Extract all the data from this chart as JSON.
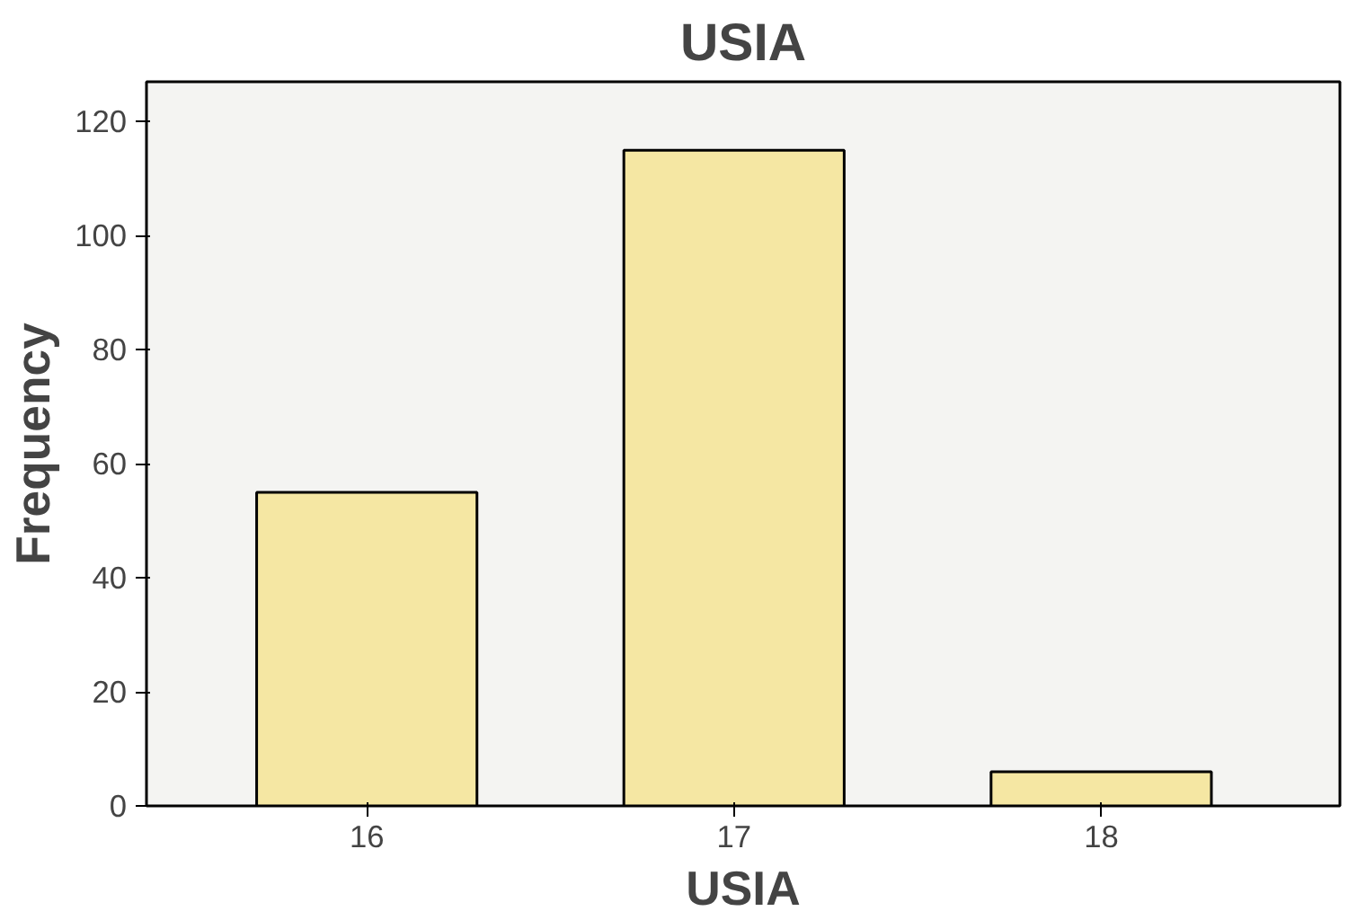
{
  "chart_data": {
    "type": "bar",
    "title": "USIA",
    "xlabel": "USIA",
    "ylabel": "Frequency",
    "categories": [
      "16",
      "17",
      "18"
    ],
    "values": [
      55,
      115,
      6
    ],
    "color": "#f5e7a3",
    "ylim": [
      0,
      127
    ],
    "yticks": [
      0,
      20,
      40,
      60,
      80,
      100,
      120
    ],
    "grid": false
  }
}
